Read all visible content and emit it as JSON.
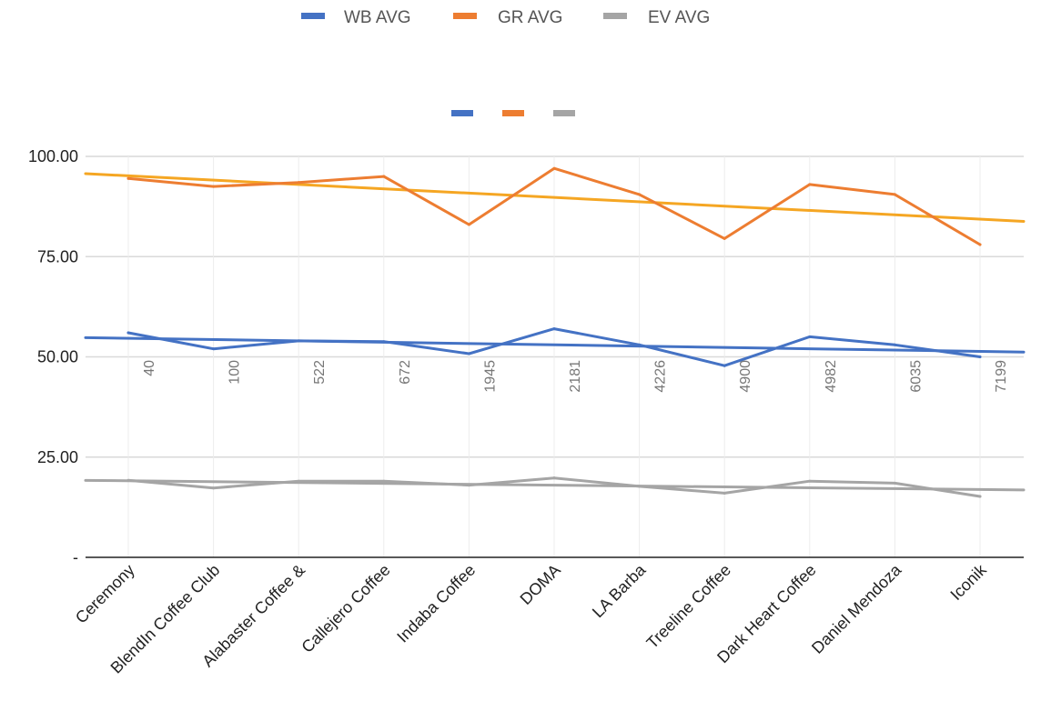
{
  "chart_data": {
    "type": "line",
    "title": "",
    "xlabel": "",
    "ylabel": "",
    "ylim": [
      0,
      100
    ],
    "grid": true,
    "legend_position": "top",
    "y_ticks": [
      {
        "value": 0,
        "label": "-"
      },
      {
        "value": 25,
        "label": "25.00"
      },
      {
        "value": 50,
        "label": "50.00"
      },
      {
        "value": 75,
        "label": "75.00"
      },
      {
        "value": 100,
        "label": "100.00"
      }
    ],
    "categories": [
      "Ceremony",
      "BlendIn Coffee Club",
      "Alabaster Coffee &",
      "Callejero Coffee",
      "Indaba Coffee",
      "DOMA",
      "LA Barba",
      "Treeline Coffee",
      "Dark Heart Coffee",
      "Daniel Mendoza",
      "Iconik"
    ],
    "data_labels": [
      "40",
      "100",
      "522",
      "672",
      "1945",
      "2181",
      "4226",
      "4900",
      "4982",
      "6035",
      "7199"
    ],
    "series": [
      {
        "name": "WB AVG",
        "color": "#4472c4",
        "values": [
          56.0,
          52.0,
          54.0,
          53.8,
          50.8,
          57.0,
          53.0,
          47.8,
          55.0,
          53.0,
          50.0
        ]
      },
      {
        "name": "GR AVG",
        "color": "#ed7d31",
        "values": [
          94.5,
          92.5,
          93.5,
          95.0,
          83.0,
          97.0,
          90.5,
          79.5,
          93.0,
          90.5,
          78.0
        ]
      },
      {
        "name": "EV AVG",
        "color": "#a5a5a5",
        "values": [
          19.2,
          17.3,
          19.0,
          19.0,
          18.0,
          19.8,
          17.7,
          16.0,
          19.0,
          18.5,
          15.2
        ]
      }
    ],
    "trendlines": [
      {
        "series": "WB AVG",
        "color": "#4472c4",
        "start": 54.8,
        "end": 51.2
      },
      {
        "series": "GR AVG",
        "color": "#f5a623",
        "start": 95.7,
        "end": 83.8
      },
      {
        "series": "EV AVG",
        "color": "#a5a5a5",
        "start": 19.2,
        "end": 16.8
      }
    ]
  }
}
